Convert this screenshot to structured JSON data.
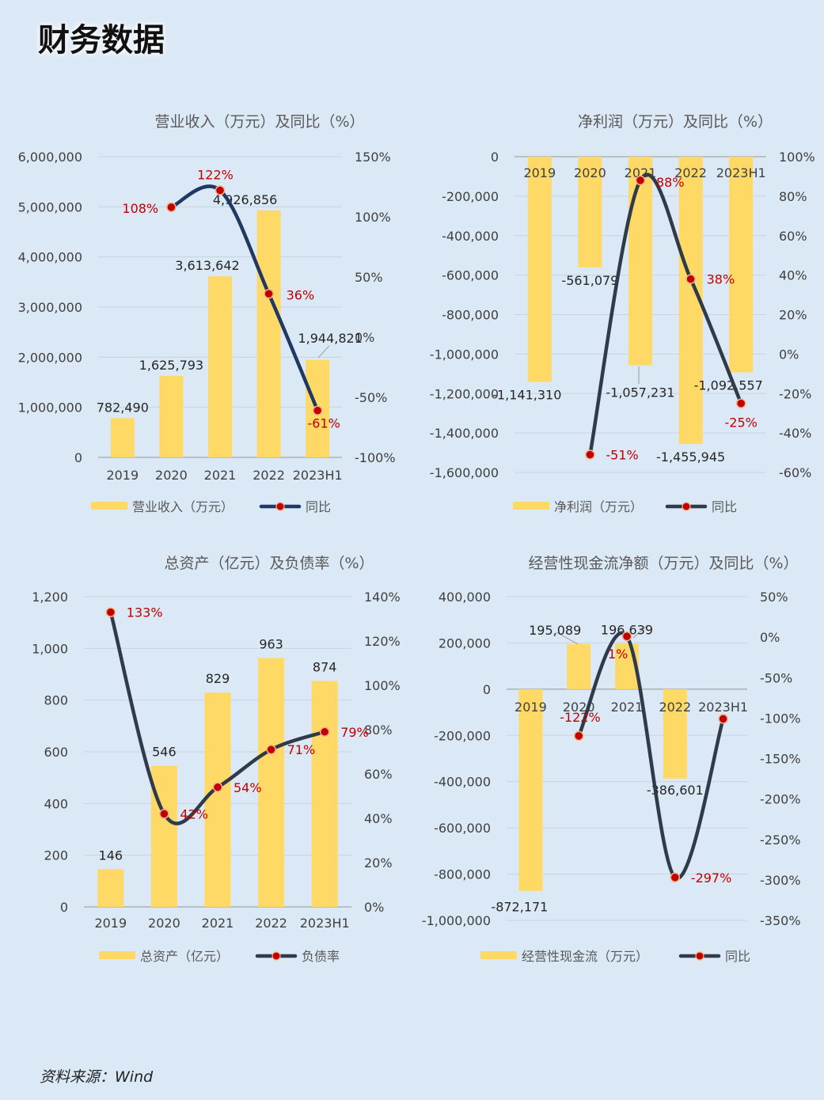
{
  "page": {
    "title": "财务数据",
    "source": "资料来源：Wind"
  },
  "colors": {
    "bar": "#ffd966",
    "line": "#1f3864",
    "line_dark": "#2f3a4a",
    "marker": "#c00000",
    "label_red": "#c00000",
    "grid": "#c8d3df",
    "text": "#404040"
  },
  "chart_data": [
    {
      "type": "bar",
      "title": "营业收入（万元）及同比（%）",
      "categories": [
        "2019",
        "2020",
        "2021",
        "2022",
        "2023H1"
      ],
      "series": [
        {
          "name": "营业收入（万元）",
          "kind": "bar",
          "axis": "left",
          "values": [
            782490,
            1625793,
            3613642,
            4926856,
            1944821
          ],
          "labels": [
            "782,490",
            "1,625,793",
            "3,613,642",
            "4,926,856",
            "1,944,821"
          ]
        },
        {
          "name": "同比",
          "kind": "line",
          "axis": "right",
          "values": [
            null,
            108,
            122,
            36,
            -61
          ],
          "labels": [
            "",
            "108%",
            "122%",
            "36%",
            "-61%"
          ]
        }
      ],
      "left_axis": {
        "ylim": [
          0,
          6000000
        ],
        "ticks": [
          "0",
          "1,000,000",
          "2,000,000",
          "3,000,000",
          "4,000,000",
          "5,000,000",
          "6,000,000"
        ]
      },
      "right_axis": {
        "ylim": [
          -100,
          150
        ],
        "ticks": [
          "-100%",
          "-50%",
          "0%",
          "50%",
          "100%",
          "150%"
        ]
      },
      "grid": true,
      "legend": "bottom"
    },
    {
      "type": "bar",
      "title": "净利润（万元）及同比（%）",
      "categories": [
        "2019",
        "2020",
        "2021",
        "2022",
        "2023H1"
      ],
      "series": [
        {
          "name": "净利润（万元）",
          "kind": "bar",
          "axis": "left",
          "values": [
            -1141310,
            -561079,
            -1057231,
            -1455945,
            -1092557
          ],
          "labels": [
            "-1,141,310",
            "-561,079",
            "-1,057,231",
            "-1,455,945",
            "-1,092,557"
          ]
        },
        {
          "name": "同比",
          "kind": "line",
          "axis": "right",
          "values": [
            null,
            -51,
            88,
            38,
            -25
          ],
          "labels": [
            "",
            "-51%",
            "88%",
            "38%",
            "-25%"
          ]
        }
      ],
      "left_axis": {
        "ylim": [
          -1600000,
          0
        ],
        "ticks": [
          "-1,600,000",
          "-1,400,000",
          "-1,200,000",
          "-1,000,000",
          "-800,000",
          "-600,000",
          "-400,000",
          "-200,000",
          "0"
        ]
      },
      "right_axis": {
        "ylim": [
          -60,
          100
        ],
        "ticks": [
          "-60%",
          "-40%",
          "-20%",
          "0%",
          "20%",
          "40%",
          "60%",
          "80%",
          "100%"
        ]
      },
      "grid": true,
      "legend": "bottom"
    },
    {
      "type": "bar",
      "title": "总资产（亿元）及负债率（%）",
      "categories": [
        "2019",
        "2020",
        "2021",
        "2022",
        "2023H1"
      ],
      "series": [
        {
          "name": "总资产（亿元）",
          "kind": "bar",
          "axis": "left",
          "values": [
            146,
            546,
            829,
            963,
            874
          ],
          "labels": [
            "146",
            "546",
            "829",
            "963",
            "874"
          ]
        },
        {
          "name": "负债率",
          "kind": "line",
          "axis": "right",
          "values": [
            133,
            42,
            54,
            71,
            79
          ],
          "labels": [
            "133%",
            "42%",
            "54%",
            "71%",
            "79%"
          ]
        }
      ],
      "left_axis": {
        "ylim": [
          0,
          1200
        ],
        "ticks": [
          "0",
          "200",
          "400",
          "600",
          "800",
          "1,000",
          "1,200"
        ]
      },
      "right_axis": {
        "ylim": [
          0,
          140
        ],
        "ticks": [
          "0%",
          "20%",
          "40%",
          "60%",
          "80%",
          "100%",
          "120%",
          "140%"
        ]
      },
      "grid": true,
      "legend": "bottom"
    },
    {
      "type": "bar",
      "title": "经营性现金流净额（万元）及同比（%）",
      "categories": [
        "2019",
        "2020",
        "2021",
        "2022",
        "2023H1"
      ],
      "series": [
        {
          "name": "经营性现金流（万元）",
          "kind": "bar",
          "axis": "left",
          "values": [
            -872171,
            195089,
            196639,
            -386601,
            null
          ],
          "labels": [
            "-872,171",
            "195,089",
            "196,639",
            "-386,601",
            ""
          ]
        },
        {
          "name": "同比",
          "kind": "line",
          "axis": "right",
          "values": [
            null,
            -122,
            1,
            -297,
            -101
          ],
          "labels": [
            "",
            "-122%",
            "1%",
            "-297%",
            ""
          ]
        }
      ],
      "left_axis": {
        "ylim": [
          -1000000,
          400000
        ],
        "ticks": [
          "-1,000,000",
          "-800,000",
          "-600,000",
          "-400,000",
          "-200,000",
          "0",
          "200,000",
          "400,000"
        ]
      },
      "right_axis": {
        "ylim": [
          -350,
          50
        ],
        "ticks": [
          "-350%",
          "-300%",
          "-250%",
          "-200%",
          "-150%",
          "-100%",
          "-50%",
          "0%",
          "50%"
        ]
      },
      "grid": true,
      "legend": "bottom"
    }
  ]
}
